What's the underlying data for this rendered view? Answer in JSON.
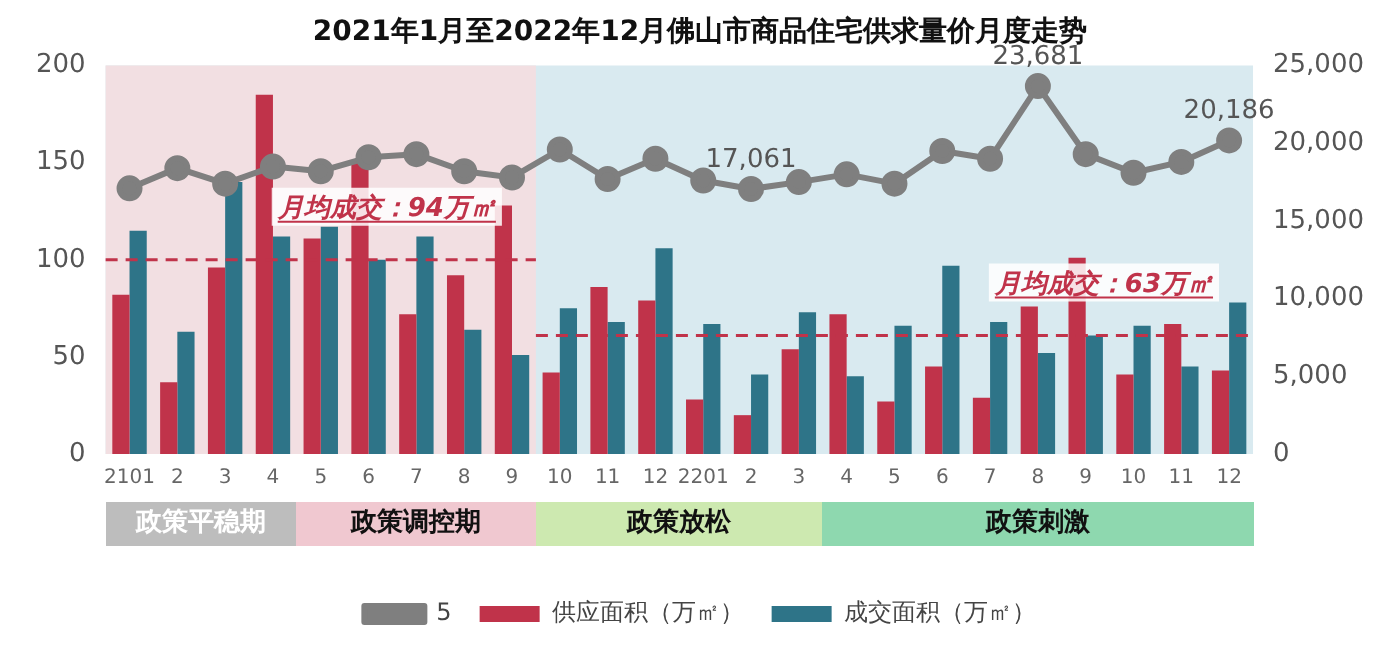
{
  "chart_data": {
    "type": "bar",
    "title": "2021年1月至2022年12月佛山市商品住宅供求量价月度走势",
    "categories": [
      "2101",
      "2",
      "3",
      "4",
      "5",
      "6",
      "7",
      "8",
      "9",
      "10",
      "11",
      "12",
      "2201",
      "2",
      "3",
      "4",
      "5",
      "6",
      "7",
      "8",
      "9",
      "10",
      "11",
      "12"
    ],
    "series": [
      {
        "name": "供应面积（万㎡）",
        "color": "#c0334a",
        "values": [
          82,
          37,
          96,
          185,
          111,
          150,
          72,
          92,
          128,
          42,
          86,
          79,
          28,
          20,
          54,
          72,
          27,
          45,
          29,
          76,
          101,
          41,
          67,
          43
        ]
      },
      {
        "name": "成交面积（万㎡）",
        "color": "#2e7488",
        "values": [
          115,
          63,
          140,
          112,
          117,
          100,
          112,
          64,
          51,
          75,
          68,
          106,
          67,
          41,
          73,
          40,
          66,
          97,
          68,
          52,
          61,
          66,
          45,
          78
        ]
      },
      {
        "name": "5",
        "type": "line",
        "axis": "y2",
        "color": "#7f7f7f",
        "marker": "circle",
        "values": [
          17100,
          18400,
          17400,
          18500,
          18200,
          19100,
          19300,
          18200,
          17800,
          19600,
          17700,
          19000,
          17600,
          17061,
          17500,
          18000,
          17400,
          19500,
          19000,
          23681,
          19300,
          18100,
          18800,
          20186
        ],
        "value_labels": [
          null,
          null,
          null,
          null,
          null,
          null,
          null,
          null,
          null,
          null,
          null,
          null,
          null,
          "17,061",
          null,
          null,
          null,
          null,
          null,
          "23,681",
          null,
          null,
          null,
          "20,186"
        ]
      }
    ],
    "ylim": [
      0,
      200
    ],
    "yticks": [
      0,
      50,
      100,
      150,
      200
    ],
    "y2lim": [
      0,
      25000
    ],
    "y2ticks": [
      0,
      {
        "value": 5000,
        "label": "5,000"
      },
      {
        "value": 10000,
        "label": "10,000"
      },
      {
        "value": 15000,
        "label": "15,000"
      },
      {
        "value": 20000,
        "label": "20,000"
      },
      {
        "value": 25000,
        "label": "25,000"
      }
    ],
    "legend": "bottom",
    "bands": [
      {
        "axis": "x",
        "from": "2101",
        "to": "9",
        "color": "#f2dfe2"
      }
    ],
    "ref_lines": [
      {
        "axis": "y",
        "value": 100,
        "label": "月均成交：94万㎡",
        "color": "#c0334a",
        "line_style": "dashed"
      },
      {
        "axis": "y",
        "value": 61,
        "label": "月均成交：63万㎡",
        "color": "#c0334a",
        "line_style": "dashed"
      }
    ],
    "annotations": [
      "政策平稳期",
      "政策调控期",
      "政策放松",
      "政策刺激"
    ]
  }
}
